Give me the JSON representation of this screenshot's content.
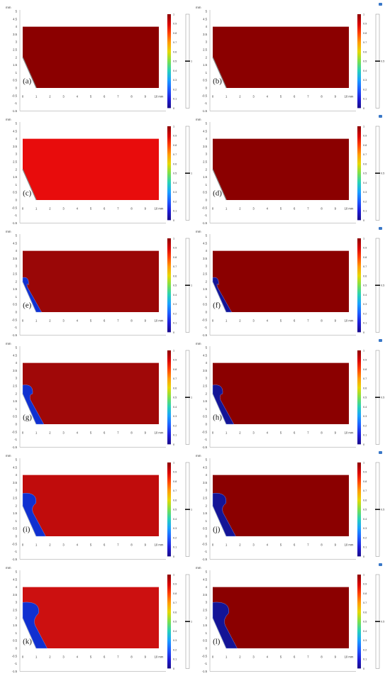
{
  "unit": "mm",
  "x_ticks": [
    "0",
    "1",
    "2",
    "3",
    "4",
    "5",
    "6",
    "7",
    "8",
    "9",
    "10"
  ],
  "y_ticks": [
    "5",
    "4.5",
    "4",
    "3.5",
    "3",
    "2.5",
    "2",
    "1.5",
    "1",
    "0.5",
    "0",
    "-0.5",
    "-1",
    "-1.5"
  ],
  "colorbar_ticks": [
    "1",
    "0.9",
    "0.8",
    "0.7",
    "0.6",
    "0.5",
    "0.4",
    "0.3",
    "0.2",
    "0.1",
    "0"
  ],
  "contour_label_left": "1",
  "contour_label_right": "0.5",
  "colors": {
    "dark_red": "#8b0000",
    "red": "#a50a0a",
    "bright_red": "#e80c0c",
    "blue": "#1030d0",
    "dark_blue": "#141496"
  },
  "panels": [
    {
      "label": "(a)",
      "fill": "#8b0000",
      "droplet_growth": 0.0
    },
    {
      "label": "(b)",
      "fill": "#8b0000",
      "droplet_growth": 0.0
    },
    {
      "label": "(c)",
      "fill": "#e80c0c",
      "droplet_growth": 0.0
    },
    {
      "label": "(d)",
      "fill": "#8b0000",
      "droplet_growth": 0.0
    },
    {
      "label": "(e)",
      "fill": "#9a0707",
      "droplet_growth": 0.25
    },
    {
      "label": "(f)",
      "fill": "#8b0000",
      "droplet_growth": 0.25
    },
    {
      "label": "(g)",
      "fill": "#a00808",
      "droplet_growth": 0.55
    },
    {
      "label": "(h)",
      "fill": "#8b0000",
      "droplet_growth": 0.55
    },
    {
      "label": "(i)",
      "fill": "#c00c0c",
      "droplet_growth": 0.8
    },
    {
      "label": "(j)",
      "fill": "#8b0000",
      "droplet_growth": 0.8
    },
    {
      "label": "(k)",
      "fill": "#cc1010",
      "droplet_growth": 1.0
    },
    {
      "label": "(l)",
      "fill": "#8b0000",
      "droplet_growth": 1.0
    }
  ]
}
